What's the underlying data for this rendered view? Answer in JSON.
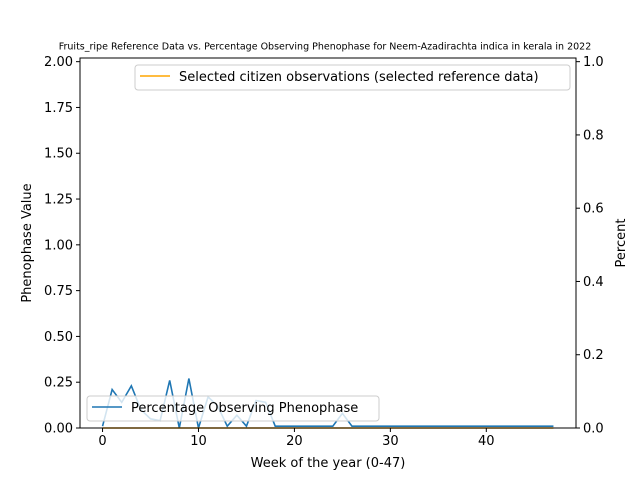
{
  "chart_data": {
    "type": "line",
    "title": "Fruits_ripe Reference Data vs. Percentage Observing Phenophase for Neem-Azadirachta indica in kerala in 2022",
    "xlabel": "Week of the year (0-47)",
    "ylabel_left": "Phenophase Value",
    "ylabel_right": "Percent",
    "xlim": [
      -2.35,
      49.35
    ],
    "ylim_left": [
      0,
      2.02
    ],
    "ylim_right": [
      0,
      1.01
    ],
    "x_ticks": [
      0,
      10,
      20,
      30,
      40
    ],
    "y_ticks_left": [
      0.0,
      0.25,
      0.5,
      0.75,
      1.0,
      1.25,
      1.5,
      1.75,
      2.0
    ],
    "y_ticks_left_labels": [
      "0.00",
      "0.25",
      "0.50",
      "0.75",
      "1.00",
      "1.25",
      "1.50",
      "1.75",
      "2.00"
    ],
    "y_ticks_right": [
      0.0,
      0.2,
      0.4,
      0.6,
      0.8,
      1.0
    ],
    "y_ticks_right_labels": [
      "0.0",
      "0.2",
      "0.4",
      "0.6",
      "0.8",
      "1.0"
    ],
    "grid": false,
    "series": [
      {
        "name": "Selected citizen observations (selected reference data)",
        "axis": "right",
        "color": "#ffa500",
        "x": [
          0,
          47
        ],
        "values": [
          0,
          0
        ],
        "legend_position": "top-right"
      },
      {
        "name": "Percentage Observing Phenophase",
        "axis": "left",
        "color": "#1f77b4",
        "x": [
          0,
          1,
          2,
          3,
          4,
          5,
          6,
          7,
          8,
          9,
          10,
          11,
          12,
          13,
          14,
          15,
          16,
          17,
          18,
          19,
          20,
          21,
          22,
          23,
          24,
          25,
          26,
          27,
          28,
          29,
          30,
          31,
          32,
          33,
          34,
          35,
          36,
          37,
          38,
          39,
          40,
          41,
          42,
          43,
          44,
          45,
          46,
          47
        ],
        "values": [
          0.01,
          0.21,
          0.14,
          0.23,
          0.1,
          0.05,
          0.04,
          0.26,
          0.0,
          0.27,
          0.0,
          0.17,
          0.12,
          0.01,
          0.07,
          0.01,
          0.15,
          0.14,
          0.01,
          0.01,
          0.01,
          0.01,
          0.01,
          0.01,
          0.01,
          0.08,
          0.01,
          0.01,
          0.01,
          0.01,
          0.01,
          0.01,
          0.01,
          0.01,
          0.01,
          0.01,
          0.01,
          0.01,
          0.01,
          0.01,
          0.01,
          0.01,
          0.01,
          0.01,
          0.01,
          0.01,
          0.01,
          0.01
        ],
        "legend_position": "lower-left"
      }
    ]
  }
}
